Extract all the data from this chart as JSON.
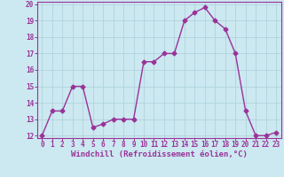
{
  "x": [
    0,
    1,
    2,
    3,
    4,
    5,
    6,
    7,
    8,
    9,
    10,
    11,
    12,
    13,
    14,
    15,
    16,
    17,
    18,
    19,
    20,
    21,
    22,
    23
  ],
  "y": [
    12,
    13.5,
    13.5,
    15,
    15,
    12.5,
    12.7,
    13,
    13,
    13,
    16.5,
    16.5,
    17,
    17,
    19,
    19.5,
    19.8,
    19,
    18.5,
    17,
    13.5,
    12,
    12,
    12.2
  ],
  "line_color": "#993399",
  "marker": "D",
  "marker_size": 2.5,
  "bg_color": "#cce8f0",
  "grid_color": "#b0d4dc",
  "xlabel": "Windchill (Refroidissement éolien,°C)",
  "xlabel_color": "#993399",
  "tick_color": "#993399",
  "label_color": "#993399",
  "ylim": [
    12,
    20
  ],
  "xlim": [
    -0.5,
    23.5
  ],
  "yticks": [
    12,
    13,
    14,
    15,
    16,
    17,
    18,
    19,
    20
  ],
  "xticks": [
    0,
    1,
    2,
    3,
    4,
    5,
    6,
    7,
    8,
    9,
    10,
    11,
    12,
    13,
    14,
    15,
    16,
    17,
    18,
    19,
    20,
    21,
    22,
    23
  ],
  "line_width": 1.0,
  "spine_color": "#993399",
  "xlabel_fontsize": 6.5,
  "tick_fontsize": 5.5
}
